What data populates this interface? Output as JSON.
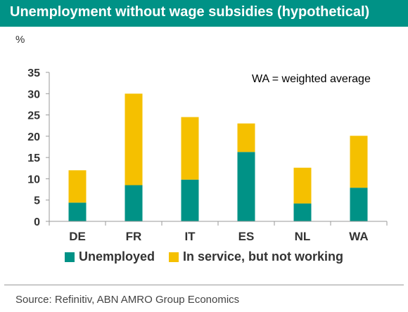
{
  "header": {
    "title": "Unemployment without wage subsidies (hypothetical)"
  },
  "chart_data": {
    "type": "bar",
    "stacked": true,
    "title": "Unemployment without wage subsidies (hypothetical)",
    "ylabel": "%",
    "ylim": [
      0,
      35
    ],
    "yticks": [
      0,
      5,
      10,
      15,
      20,
      25,
      30,
      35
    ],
    "categories": [
      "DE",
      "FR",
      "IT",
      "ES",
      "NL",
      "WA"
    ],
    "series": [
      {
        "name": "Unemployed",
        "color": "#009286",
        "values": [
          4.4,
          8.5,
          9.8,
          16.3,
          4.2,
          7.9
        ]
      },
      {
        "name": "In service, but not working",
        "color": "#f5c000",
        "values": [
          7.6,
          21.5,
          14.7,
          6.7,
          8.4,
          12.2
        ]
      }
    ],
    "annotation": "WA = weighted average",
    "grid": false,
    "legend_position": "bottom"
  },
  "footer": {
    "source": "Source: Refinitiv, ABN AMRO Group Economics"
  }
}
